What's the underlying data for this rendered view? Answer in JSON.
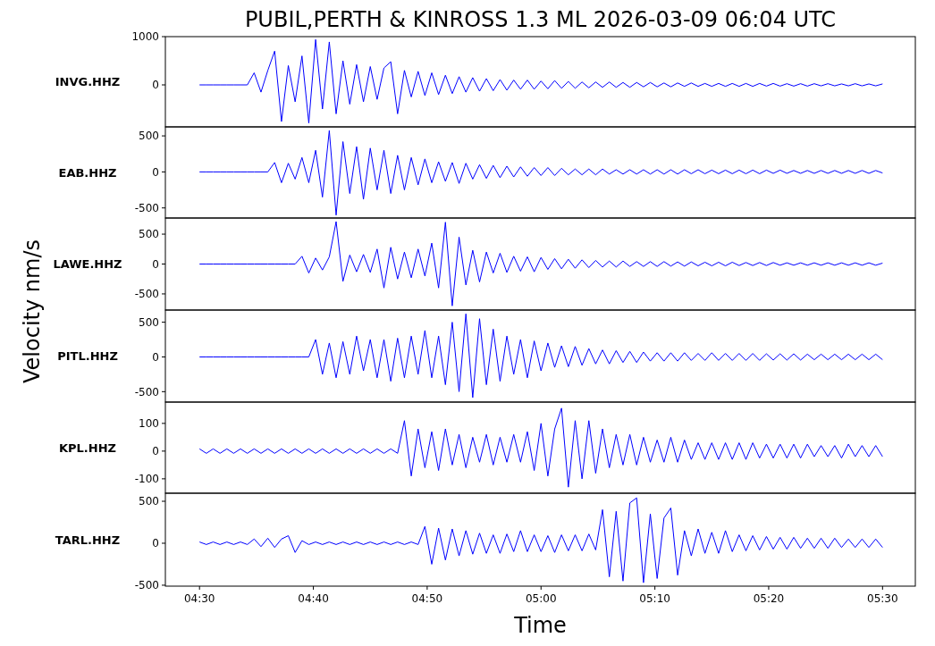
{
  "chart_data": [
    {
      "type": "line",
      "title": "PUBIL,PERTH & KINROSS 1.3 ML   2026-03-09 06:04 UTC",
      "ylabel": "Velocity nm/s",
      "legend": false,
      "tick_labels": "y",
      "x": [
        4.5,
        4.51,
        4.52,
        4.53,
        4.54,
        4.55,
        4.56,
        4.57,
        4.58,
        4.59,
        4.6,
        4.61,
        4.62,
        4.63,
        4.64,
        4.65,
        4.66,
        4.67,
        4.68,
        4.69,
        4.7,
        4.71,
        4.72,
        4.73,
        4.74,
        4.75,
        4.76,
        4.77,
        4.78,
        4.79,
        4.8,
        4.81,
        4.82,
        4.83,
        4.84,
        4.85,
        4.86,
        4.87,
        4.88,
        4.89,
        4.9,
        4.91,
        4.92,
        4.93,
        4.94,
        4.95,
        4.96,
        4.97,
        4.98,
        4.99,
        5,
        5.01,
        5.02,
        5.03,
        5.04,
        5.05,
        5.06,
        5.07,
        5.08,
        5.09,
        5.1,
        5.11,
        5.12,
        5.13,
        5.14,
        5.15,
        5.16,
        5.17,
        5.18,
        5.19,
        5.2,
        5.21,
        5.22,
        5.23,
        5.24,
        5.25,
        5.26,
        5.27,
        5.28,
        5.29,
        5.3,
        5.31,
        5.32,
        5.33,
        5.34,
        5.35,
        5.36,
        5.37,
        5.38,
        5.39,
        5.4,
        5.41,
        5.42,
        5.43,
        5.44,
        5.45,
        5.46,
        5.47,
        5.48,
        5.49,
        5.5
      ],
      "xlim": [
        4.45,
        5.548
      ],
      "ylim": [
        -870,
        1000
      ],
      "yticks": [
        0,
        1000
      ],
      "series": [
        {
          "name": "INVG.HHZ",
          "color": "#0000ff",
          "values": [
            0,
            0,
            0,
            0,
            0,
            0,
            0,
            0,
            250,
            -150,
            300,
            700,
            -760,
            400,
            -350,
            600,
            -790,
            940,
            -500,
            890,
            -600,
            500,
            -400,
            420,
            -350,
            380,
            -300,
            350,
            480,
            -600,
            300,
            -250,
            280,
            -220,
            250,
            -200,
            200,
            -180,
            170,
            -150,
            150,
            -130,
            130,
            -120,
            110,
            -110,
            100,
            -90,
            100,
            -90,
            80,
            -80,
            90,
            -70,
            70,
            -70,
            60,
            -60,
            60,
            -50,
            60,
            -50,
            50,
            -50,
            50,
            -40,
            50,
            -40,
            40,
            -40,
            40,
            -30,
            40,
            -30,
            30,
            -30,
            30,
            -30,
            30,
            -30,
            30,
            -30,
            30,
            -25,
            30,
            -25,
            25,
            -25,
            25,
            -25,
            25,
            -20,
            25,
            -20,
            20,
            -20,
            25,
            -20,
            20,
            -20,
            20
          ]
        }
      ]
    },
    {
      "type": "line",
      "legend": false,
      "tick_labels": "y",
      "x": [
        4.5,
        4.51,
        4.52,
        4.53,
        4.54,
        4.55,
        4.56,
        4.57,
        4.58,
        4.59,
        4.6,
        4.61,
        4.62,
        4.63,
        4.64,
        4.65,
        4.66,
        4.67,
        4.68,
        4.69,
        4.7,
        4.71,
        4.72,
        4.73,
        4.74,
        4.75,
        4.76,
        4.77,
        4.78,
        4.79,
        4.8,
        4.81,
        4.82,
        4.83,
        4.84,
        4.85,
        4.86,
        4.87,
        4.88,
        4.89,
        4.9,
        4.91,
        4.92,
        4.93,
        4.94,
        4.95,
        4.96,
        4.97,
        4.98,
        4.99,
        5,
        5.01,
        5.02,
        5.03,
        5.04,
        5.05,
        5.06,
        5.07,
        5.08,
        5.09,
        5.1,
        5.11,
        5.12,
        5.13,
        5.14,
        5.15,
        5.16,
        5.17,
        5.18,
        5.19,
        5.2,
        5.21,
        5.22,
        5.23,
        5.24,
        5.25,
        5.26,
        5.27,
        5.28,
        5.29,
        5.3,
        5.31,
        5.32,
        5.33,
        5.34,
        5.35,
        5.36,
        5.37,
        5.38,
        5.39,
        5.4,
        5.41,
        5.42,
        5.43,
        5.44,
        5.45,
        5.46,
        5.47,
        5.48,
        5.49,
        5.5
      ],
      "xlim": [
        4.45,
        5.548
      ],
      "ylim": [
        -640,
        625
      ],
      "yticks": [
        -500,
        0,
        500
      ],
      "series": [
        {
          "name": "EAB.HHZ",
          "color": "#0000ff",
          "values": [
            0,
            0,
            0,
            0,
            0,
            0,
            0,
            0,
            0,
            0,
            0,
            130,
            -150,
            120,
            -100,
            200,
            -150,
            300,
            -350,
            575,
            -600,
            420,
            -300,
            350,
            -380,
            330,
            -250,
            300,
            -300,
            230,
            -250,
            200,
            -180,
            180,
            -150,
            140,
            -130,
            130,
            -160,
            120,
            -100,
            100,
            -90,
            90,
            -80,
            80,
            -70,
            70,
            -60,
            60,
            -50,
            60,
            -50,
            50,
            -40,
            40,
            -40,
            40,
            -40,
            40,
            -30,
            30,
            -30,
            30,
            -30,
            30,
            -30,
            30,
            -30,
            30,
            -30,
            30,
            -25,
            30,
            -25,
            25,
            -25,
            25,
            -25,
            25,
            -25,
            25,
            -25,
            25,
            -20,
            25,
            -20,
            20,
            -20,
            20,
            -20,
            20,
            -20,
            20,
            -20,
            20,
            -20,
            20,
            -20,
            20,
            -15
          ]
        }
      ]
    },
    {
      "type": "line",
      "legend": false,
      "tick_labels": "y",
      "x": [
        4.5,
        4.51,
        4.52,
        4.53,
        4.54,
        4.55,
        4.56,
        4.57,
        4.58,
        4.59,
        4.6,
        4.61,
        4.62,
        4.63,
        4.64,
        4.65,
        4.66,
        4.67,
        4.68,
        4.69,
        4.7,
        4.71,
        4.72,
        4.73,
        4.74,
        4.75,
        4.76,
        4.77,
        4.78,
        4.79,
        4.8,
        4.81,
        4.82,
        4.83,
        4.84,
        4.85,
        4.86,
        4.87,
        4.88,
        4.89,
        4.9,
        4.91,
        4.92,
        4.93,
        4.94,
        4.95,
        4.96,
        4.97,
        4.98,
        4.99,
        5,
        5.01,
        5.02,
        5.03,
        5.04,
        5.05,
        5.06,
        5.07,
        5.08,
        5.09,
        5.1,
        5.11,
        5.12,
        5.13,
        5.14,
        5.15,
        5.16,
        5.17,
        5.18,
        5.19,
        5.2,
        5.21,
        5.22,
        5.23,
        5.24,
        5.25,
        5.26,
        5.27,
        5.28,
        5.29,
        5.3,
        5.31,
        5.32,
        5.33,
        5.34,
        5.35,
        5.36,
        5.37,
        5.38,
        5.39,
        5.4,
        5.41,
        5.42,
        5.43,
        5.44,
        5.45,
        5.46,
        5.47,
        5.48,
        5.49,
        5.5
      ],
      "xlim": [
        4.45,
        5.548
      ],
      "ylim": [
        -770,
        770
      ],
      "yticks": [
        -500,
        0,
        500
      ],
      "series": [
        {
          "name": "LAWE.HHZ",
          "color": "#0000ff",
          "values": [
            0,
            0,
            0,
            0,
            0,
            0,
            0,
            0,
            0,
            0,
            0,
            0,
            0,
            0,
            0,
            130,
            -150,
            100,
            -100,
            120,
            710,
            -290,
            150,
            -130,
            160,
            -140,
            250,
            -400,
            280,
            -250,
            200,
            -230,
            250,
            -200,
            350,
            -400,
            700,
            -700,
            450,
            -350,
            230,
            -300,
            200,
            -150,
            180,
            -140,
            130,
            -120,
            120,
            -130,
            110,
            -90,
            90,
            -80,
            80,
            -70,
            70,
            -60,
            60,
            -50,
            50,
            -50,
            50,
            -40,
            40,
            -40,
            40,
            -40,
            40,
            -35,
            35,
            -35,
            35,
            -30,
            30,
            -30,
            30,
            -30,
            30,
            -25,
            25,
            -25,
            25,
            -25,
            25,
            -20,
            20,
            -20,
            20,
            -20,
            20,
            -20,
            20,
            -20,
            20,
            -20,
            20,
            -20,
            20,
            -20,
            15
          ]
        }
      ]
    },
    {
      "type": "line",
      "legend": false,
      "tick_labels": "y",
      "x": [
        4.5,
        4.51,
        4.52,
        4.53,
        4.54,
        4.55,
        4.56,
        4.57,
        4.58,
        4.59,
        4.6,
        4.61,
        4.62,
        4.63,
        4.64,
        4.65,
        4.66,
        4.67,
        4.68,
        4.69,
        4.7,
        4.71,
        4.72,
        4.73,
        4.74,
        4.75,
        4.76,
        4.77,
        4.78,
        4.79,
        4.8,
        4.81,
        4.82,
        4.83,
        4.84,
        4.85,
        4.86,
        4.87,
        4.88,
        4.89,
        4.9,
        4.91,
        4.92,
        4.93,
        4.94,
        4.95,
        4.96,
        4.97,
        4.98,
        4.99,
        5,
        5.01,
        5.02,
        5.03,
        5.04,
        5.05,
        5.06,
        5.07,
        5.08,
        5.09,
        5.1,
        5.11,
        5.12,
        5.13,
        5.14,
        5.15,
        5.16,
        5.17,
        5.18,
        5.19,
        5.2,
        5.21,
        5.22,
        5.23,
        5.24,
        5.25,
        5.26,
        5.27,
        5.28,
        5.29,
        5.3,
        5.31,
        5.32,
        5.33,
        5.34,
        5.35,
        5.36,
        5.37,
        5.38,
        5.39,
        5.4,
        5.41,
        5.42,
        5.43,
        5.44,
        5.45,
        5.46,
        5.47,
        5.48,
        5.49,
        5.5
      ],
      "xlim": [
        4.45,
        5.548
      ],
      "ylim": [
        -650,
        675
      ],
      "yticks": [
        -500,
        0,
        500
      ],
      "series": [
        {
          "name": "PITL.HHZ",
          "color": "#0000ff",
          "values": [
            0,
            0,
            0,
            0,
            0,
            0,
            0,
            0,
            0,
            0,
            0,
            0,
            0,
            0,
            0,
            0,
            0,
            250,
            -250,
            200,
            -300,
            220,
            -250,
            300,
            -200,
            250,
            -300,
            250,
            -350,
            270,
            -300,
            300,
            -250,
            380,
            -300,
            300,
            -400,
            500,
            -500,
            620,
            -585,
            550,
            -400,
            400,
            -350,
            300,
            -250,
            250,
            -300,
            230,
            -200,
            200,
            -150,
            160,
            -140,
            150,
            -120,
            120,
            -100,
            100,
            -100,
            90,
            -80,
            80,
            -80,
            70,
            -60,
            60,
            -60,
            60,
            -60,
            60,
            -50,
            50,
            -50,
            60,
            -50,
            50,
            -50,
            50,
            -50,
            50,
            -50,
            45,
            -45,
            45,
            -45,
            45,
            -45,
            40,
            -40,
            40,
            -40,
            40,
            -40,
            40,
            -40,
            40,
            -40,
            40,
            -40
          ]
        }
      ]
    },
    {
      "type": "line",
      "legend": false,
      "tick_labels": "y",
      "x": [
        4.5,
        4.51,
        4.52,
        4.53,
        4.54,
        4.55,
        4.56,
        4.57,
        4.58,
        4.59,
        4.6,
        4.61,
        4.62,
        4.63,
        4.64,
        4.65,
        4.66,
        4.67,
        4.68,
        4.69,
        4.7,
        4.71,
        4.72,
        4.73,
        4.74,
        4.75,
        4.76,
        4.77,
        4.78,
        4.79,
        4.8,
        4.81,
        4.82,
        4.83,
        4.84,
        4.85,
        4.86,
        4.87,
        4.88,
        4.89,
        4.9,
        4.91,
        4.92,
        4.93,
        4.94,
        4.95,
        4.96,
        4.97,
        4.98,
        4.99,
        5,
        5.01,
        5.02,
        5.03,
        5.04,
        5.05,
        5.06,
        5.07,
        5.08,
        5.09,
        5.1,
        5.11,
        5.12,
        5.13,
        5.14,
        5.15,
        5.16,
        5.17,
        5.18,
        5.19,
        5.2,
        5.21,
        5.22,
        5.23,
        5.24,
        5.25,
        5.26,
        5.27,
        5.28,
        5.29,
        5.3,
        5.31,
        5.32,
        5.33,
        5.34,
        5.35,
        5.36,
        5.37,
        5.38,
        5.39,
        5.4,
        5.41,
        5.42,
        5.43,
        5.44,
        5.45,
        5.46,
        5.47,
        5.48,
        5.49,
        5.5
      ],
      "xlim": [
        4.45,
        5.548
      ],
      "ylim": [
        -152,
        177
      ],
      "yticks": [
        -100,
        0,
        100
      ],
      "series": [
        {
          "name": "KPL.HHZ",
          "color": "#0000ff",
          "values": [
            8,
            -8,
            8,
            -8,
            8,
            -8,
            8,
            -8,
            8,
            -8,
            8,
            -8,
            8,
            -8,
            8,
            -8,
            8,
            -8,
            8,
            -8,
            8,
            -8,
            8,
            -8,
            8,
            -8,
            8,
            -8,
            8,
            -8,
            110,
            -90,
            80,
            -60,
            70,
            -70,
            80,
            -50,
            60,
            -60,
            50,
            -40,
            60,
            -50,
            50,
            -40,
            60,
            -40,
            70,
            -70,
            100,
            -90,
            80,
            155,
            -130,
            110,
            -100,
            110,
            -80,
            80,
            -60,
            60,
            -50,
            60,
            -50,
            50,
            -40,
            40,
            -40,
            50,
            -40,
            40,
            -30,
            30,
            -30,
            30,
            -30,
            30,
            -30,
            30,
            -30,
            30,
            -25,
            25,
            -25,
            25,
            -25,
            25,
            -25,
            25,
            -20,
            20,
            -20,
            20,
            -25,
            25,
            -20,
            20,
            -20,
            20,
            -20
          ]
        }
      ]
    },
    {
      "type": "line",
      "xlabel": "Time",
      "legend": false,
      "x": [
        4.5,
        4.51,
        4.52,
        4.53,
        4.54,
        4.55,
        4.56,
        4.57,
        4.58,
        4.59,
        4.6,
        4.61,
        4.62,
        4.63,
        4.64,
        4.65,
        4.66,
        4.67,
        4.68,
        4.69,
        4.7,
        4.71,
        4.72,
        4.73,
        4.74,
        4.75,
        4.76,
        4.77,
        4.78,
        4.79,
        4.8,
        4.81,
        4.82,
        4.83,
        4.84,
        4.85,
        4.86,
        4.87,
        4.88,
        4.89,
        4.9,
        4.91,
        4.92,
        4.93,
        4.94,
        4.95,
        4.96,
        4.97,
        4.98,
        4.99,
        5,
        5.01,
        5.02,
        5.03,
        5.04,
        5.05,
        5.06,
        5.07,
        5.08,
        5.09,
        5.1,
        5.11,
        5.12,
        5.13,
        5.14,
        5.15,
        5.16,
        5.17,
        5.18,
        5.19,
        5.2,
        5.21,
        5.22,
        5.23,
        5.24,
        5.25,
        5.26,
        5.27,
        5.28,
        5.29,
        5.3,
        5.31,
        5.32,
        5.33,
        5.34,
        5.35,
        5.36,
        5.37,
        5.38,
        5.39,
        5.4,
        5.41,
        5.42,
        5.43,
        5.44,
        5.45,
        5.46,
        5.47,
        5.48,
        5.49,
        5.5
      ],
      "xlim": [
        4.45,
        5.548
      ],
      "ylim": [
        -511,
        596
      ],
      "yticks": [
        -500,
        0,
        500
      ],
      "xticks": [
        {
          "value": 4.5,
          "label": "04:30"
        },
        {
          "value": 4.6667,
          "label": "04:40"
        },
        {
          "value": 4.8333,
          "label": "04:50"
        },
        {
          "value": 5,
          "label": "05:00"
        },
        {
          "value": 5.1667,
          "label": "05:10"
        },
        {
          "value": 5.3333,
          "label": "05:20"
        },
        {
          "value": 5.5,
          "label": "05:30"
        }
      ],
      "series": [
        {
          "name": "TARL.HHZ",
          "color": "#0000ff",
          "values": [
            15,
            -15,
            15,
            -15,
            15,
            -15,
            15,
            -15,
            50,
            -40,
            60,
            -50,
            50,
            90,
            -110,
            30,
            -15,
            15,
            -15,
            15,
            -15,
            15,
            -15,
            15,
            -15,
            15,
            -15,
            15,
            -15,
            15,
            -15,
            15,
            -15,
            200,
            -250,
            180,
            -200,
            170,
            -150,
            150,
            -130,
            120,
            -120,
            100,
            -120,
            110,
            -100,
            150,
            -100,
            100,
            -100,
            90,
            -110,
            100,
            -90,
            100,
            -90,
            110,
            -80,
            400,
            -400,
            380,
            -450,
            480,
            540,
            -470,
            350,
            -420,
            300,
            420,
            -380,
            150,
            -150,
            170,
            -120,
            130,
            -120,
            150,
            -100,
            100,
            -90,
            90,
            -80,
            80,
            -70,
            70,
            -70,
            70,
            -60,
            60,
            -60,
            60,
            -60,
            60,
            -50,
            50,
            -50,
            50,
            -50,
            50,
            -50
          ]
        }
      ]
    }
  ]
}
